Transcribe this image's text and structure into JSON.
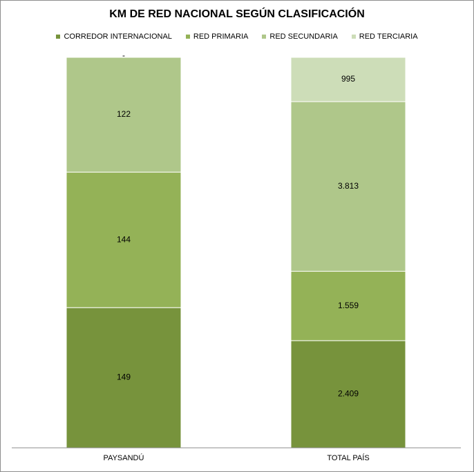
{
  "chart_data": {
    "type": "bar",
    "stacked": true,
    "title": "KM DE RED NACIONAL SEGÚN CLASIFICACIÓN",
    "xlabel": "",
    "ylabel": "",
    "legend_position": "top",
    "grid": false,
    "categories": [
      "PAYSANDÚ",
      "TOTAL PAÍS"
    ],
    "series": [
      {
        "name": "CORREDOR INTERNACIONAL",
        "color": "#77933c",
        "values": [
          149,
          2409
        ],
        "labels": [
          "149",
          "2.409"
        ]
      },
      {
        "name": "RED PRIMARIA",
        "color": "#94b257",
        "values": [
          144,
          1559
        ],
        "labels": [
          "144",
          "1.559"
        ]
      },
      {
        "name": "RED SECUNDARIA",
        "color": "#afc78a",
        "values": [
          122,
          3813
        ],
        "labels": [
          "122",
          "3.813"
        ]
      },
      {
        "name": "RED TERCIARIA",
        "color": "#cdddb8",
        "values": [
          0,
          995
        ],
        "labels": [
          "-",
          "995"
        ]
      }
    ]
  }
}
